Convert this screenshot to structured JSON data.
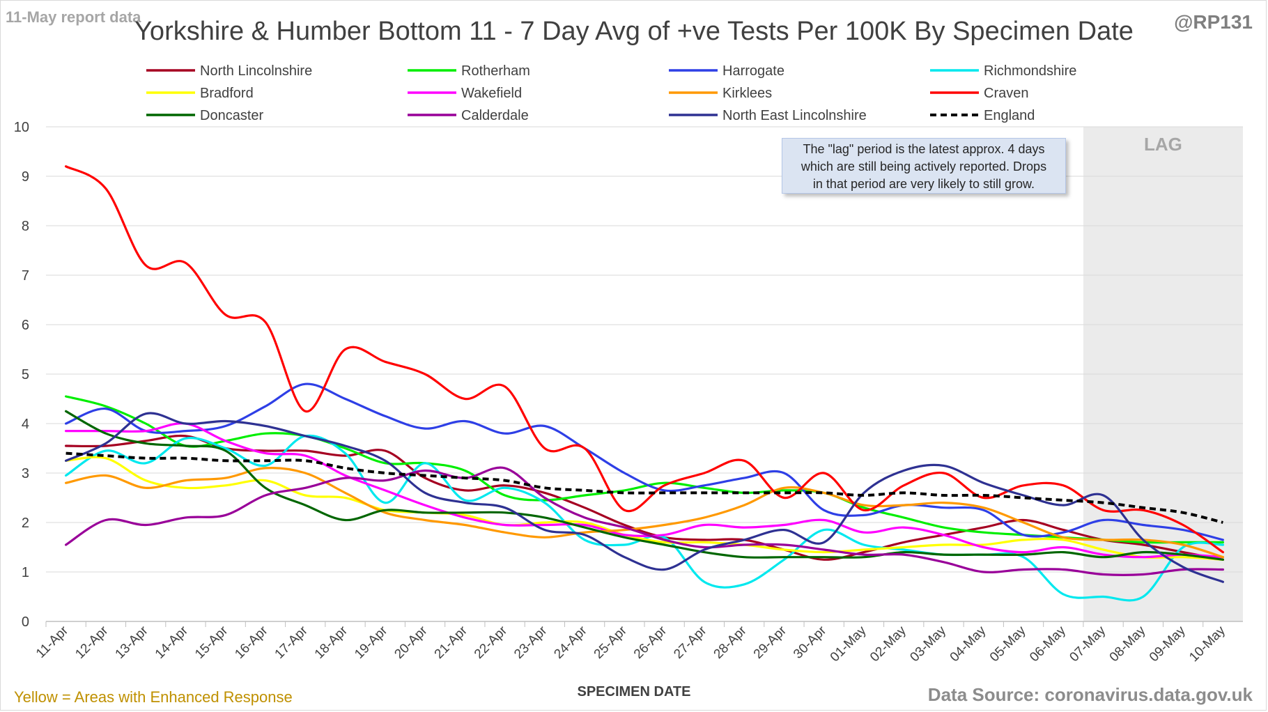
{
  "header": {
    "report_label": "11-May report data",
    "handle": "@RP131"
  },
  "footer": {
    "enhanced_note": "Yellow = Areas with Enhanced Response",
    "source": "Data Source: coronavirus.data.gov.uk"
  },
  "note": {
    "lines": [
      "The \"lag\" period is the latest approx. 4 days",
      "which are still being actively reported.  Drops",
      "in that period are very likely to still grow."
    ]
  },
  "chart_data": {
    "type": "line",
    "title": "Yorkshire & Humber Bottom 11 - 7 Day Avg of +ve Tests Per 100K By Specimen Date",
    "xlabel": "SPECIMEN DATE",
    "ylabel": "",
    "ylim": [
      0,
      10
    ],
    "yticks": [
      "0",
      "1",
      "2",
      "3",
      "4",
      "5",
      "6",
      "7",
      "8",
      "9",
      "10"
    ],
    "grid": "horizontal",
    "legend_position": "top",
    "lag_label": "LAG",
    "lag_start": "07-May",
    "lag_end": "10-May",
    "categories": [
      "11-Apr",
      "12-Apr",
      "13-Apr",
      "14-Apr",
      "15-Apr",
      "16-Apr",
      "17-Apr",
      "18-Apr",
      "19-Apr",
      "20-Apr",
      "21-Apr",
      "22-Apr",
      "23-Apr",
      "24-Apr",
      "25-Apr",
      "26-Apr",
      "27-Apr",
      "28-Apr",
      "29-Apr",
      "30-Apr",
      "01-May",
      "02-May",
      "03-May",
      "04-May",
      "05-May",
      "06-May",
      "07-May",
      "08-May",
      "09-May",
      "10-May"
    ],
    "series": [
      {
        "name": "North Lincolnshire",
        "color": "#a50021",
        "dash": false,
        "values": [
          3.55,
          3.55,
          3.65,
          3.75,
          3.5,
          3.45,
          3.45,
          3.35,
          3.45,
          2.9,
          2.65,
          2.75,
          2.6,
          2.3,
          1.95,
          1.7,
          1.65,
          1.65,
          1.45,
          1.25,
          1.4,
          1.6,
          1.75,
          1.9,
          2.05,
          1.85,
          1.65,
          1.55,
          1.4,
          1.25
        ]
      },
      {
        "name": "Rotherham",
        "color": "#00ee00",
        "dash": false,
        "values": [
          4.55,
          4.35,
          4.0,
          3.55,
          3.65,
          3.8,
          3.75,
          3.5,
          3.2,
          3.2,
          3.05,
          2.55,
          2.45,
          2.55,
          2.65,
          2.8,
          2.7,
          2.6,
          2.65,
          2.6,
          2.3,
          2.1,
          1.9,
          1.8,
          1.75,
          1.7,
          1.65,
          1.6,
          1.6,
          1.6
        ]
      },
      {
        "name": "Harrogate",
        "color": "#2e3fe6",
        "dash": false,
        "values": [
          4.0,
          4.3,
          3.85,
          3.85,
          3.95,
          4.35,
          4.8,
          4.5,
          4.15,
          3.9,
          4.05,
          3.8,
          3.95,
          3.5,
          3.0,
          2.65,
          2.75,
          2.9,
          3.0,
          2.25,
          2.15,
          2.35,
          2.3,
          2.25,
          1.75,
          1.8,
          2.05,
          1.95,
          1.85,
          1.65
        ]
      },
      {
        "name": "Richmondshire",
        "color": "#00e8ee",
        "dash": false,
        "values": [
          2.95,
          3.45,
          3.2,
          3.7,
          3.5,
          3.15,
          3.75,
          3.4,
          2.4,
          3.2,
          2.45,
          2.7,
          2.4,
          1.65,
          1.55,
          1.7,
          0.8,
          0.75,
          1.25,
          1.85,
          1.55,
          1.45,
          1.35,
          1.35,
          1.3,
          0.55,
          0.5,
          0.5,
          1.5,
          1.55
        ]
      },
      {
        "name": "Bradford",
        "color": "#ffff00",
        "dash": false,
        "values": [
          3.25,
          3.3,
          2.85,
          2.7,
          2.75,
          2.85,
          2.55,
          2.5,
          2.25,
          2.2,
          2.15,
          1.95,
          2.0,
          2.0,
          1.75,
          1.6,
          1.6,
          1.55,
          1.45,
          1.4,
          1.45,
          1.5,
          1.55,
          1.55,
          1.65,
          1.65,
          1.45,
          1.3,
          1.3,
          1.25
        ]
      },
      {
        "name": "Wakefield",
        "color": "#ff00ff",
        "dash": false,
        "values": [
          3.85,
          3.85,
          3.85,
          4.0,
          3.65,
          3.4,
          3.35,
          2.95,
          2.65,
          2.35,
          2.1,
          1.95,
          1.95,
          1.95,
          1.75,
          1.75,
          1.95,
          1.9,
          1.95,
          2.05,
          1.8,
          1.9,
          1.75,
          1.5,
          1.4,
          1.5,
          1.35,
          1.3,
          1.35,
          1.3
        ]
      },
      {
        "name": "Kirklees",
        "color": "#ff9900",
        "dash": false,
        "values": [
          2.8,
          2.95,
          2.7,
          2.85,
          2.9,
          3.1,
          3.0,
          2.6,
          2.2,
          2.05,
          1.95,
          1.8,
          1.7,
          1.8,
          1.85,
          1.95,
          2.1,
          2.35,
          2.7,
          2.6,
          2.35,
          2.35,
          2.4,
          2.3,
          2.0,
          1.7,
          1.65,
          1.65,
          1.55,
          1.3
        ]
      },
      {
        "name": "Craven",
        "color": "#ff0000",
        "dash": false,
        "values": [
          9.2,
          8.75,
          7.2,
          7.25,
          6.2,
          6.05,
          4.25,
          5.5,
          5.25,
          5.0,
          4.5,
          4.75,
          3.5,
          3.5,
          2.25,
          2.75,
          3.0,
          3.25,
          2.5,
          3.0,
          2.25,
          2.75,
          3.0,
          2.5,
          2.75,
          2.75,
          2.25,
          2.25,
          1.95,
          1.4
        ]
      },
      {
        "name": "Doncaster",
        "color": "#006600",
        "dash": false,
        "values": [
          4.25,
          3.8,
          3.6,
          3.55,
          3.45,
          2.7,
          2.35,
          2.05,
          2.25,
          2.2,
          2.2,
          2.2,
          2.1,
          1.9,
          1.7,
          1.55,
          1.4,
          1.3,
          1.3,
          1.3,
          1.3,
          1.4,
          1.35,
          1.35,
          1.35,
          1.4,
          1.3,
          1.4,
          1.35,
          1.25
        ]
      },
      {
        "name": "Calderdale",
        "color": "#990099",
        "dash": false,
        "values": [
          1.55,
          2.05,
          1.95,
          2.1,
          2.15,
          2.55,
          2.7,
          2.9,
          2.85,
          3.05,
          2.9,
          3.1,
          2.5,
          2.1,
          1.9,
          1.65,
          1.5,
          1.55,
          1.55,
          1.45,
          1.35,
          1.35,
          1.2,
          1.0,
          1.05,
          1.05,
          0.95,
          0.95,
          1.05,
          1.05
        ]
      },
      {
        "name": "North East Lincolnshire",
        "color": "#2e3192",
        "dash": false,
        "values": [
          3.25,
          3.6,
          4.2,
          4.0,
          4.05,
          3.95,
          3.75,
          3.55,
          3.25,
          2.6,
          2.4,
          2.3,
          1.85,
          1.75,
          1.3,
          1.05,
          1.45,
          1.65,
          1.85,
          1.6,
          2.6,
          3.05,
          3.15,
          2.8,
          2.55,
          2.35,
          2.55,
          1.65,
          1.1,
          0.8
        ]
      },
      {
        "name": "England",
        "color": "#000000",
        "dash": true,
        "values": [
          3.4,
          3.35,
          3.3,
          3.3,
          3.25,
          3.25,
          3.25,
          3.1,
          3.0,
          2.95,
          2.9,
          2.85,
          2.7,
          2.65,
          2.6,
          2.6,
          2.6,
          2.6,
          2.6,
          2.6,
          2.55,
          2.6,
          2.55,
          2.55,
          2.5,
          2.45,
          2.4,
          2.3,
          2.2,
          2.0
        ]
      }
    ]
  }
}
